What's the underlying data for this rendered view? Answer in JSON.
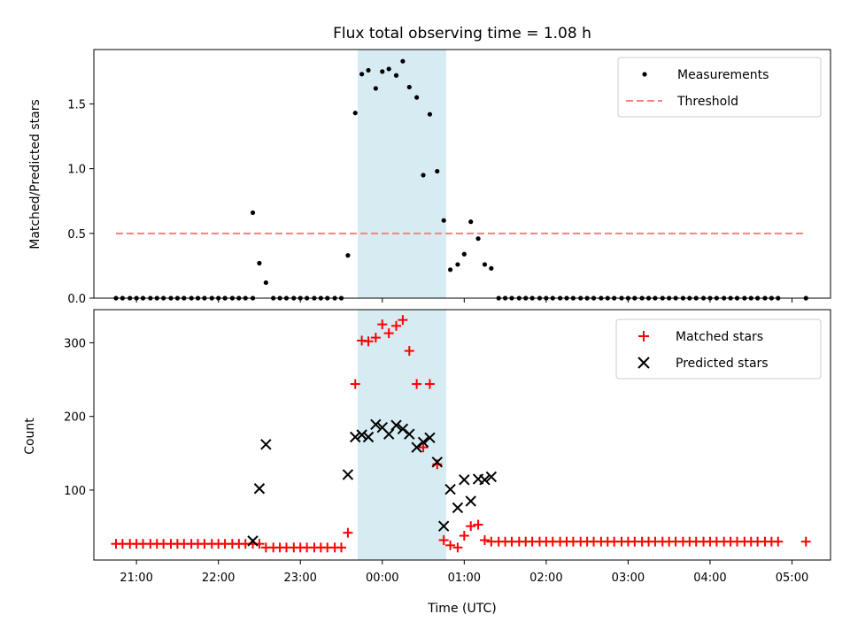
{
  "chart_data": [
    {
      "type": "scatter",
      "title": "Flux total observing time = 1.08 h",
      "xlabel": "",
      "ylabel": "Matched/Predicted stars",
      "xlim": [
        -3.52,
        5.47
      ],
      "ylim": [
        0,
        1.92
      ],
      "yticks": [
        "0.0",
        "0.5",
        "1.0",
        "1.5"
      ],
      "yticks_values": [
        0,
        0.5,
        1.0,
        1.5
      ],
      "highlight_span": [
        -0.3,
        0.78
      ],
      "threshold": 0.5,
      "threshold_x": [
        -3.25,
        5.17
      ],
      "legend_position": "top-right",
      "series": [
        {
          "name": "Measurements",
          "color": "#000000",
          "marker": "dot",
          "points": [
            [
              -3.25,
              0
            ],
            [
              -3.17,
              0
            ],
            [
              -3.08,
              0
            ],
            [
              -3.0,
              0
            ],
            [
              -2.92,
              0
            ],
            [
              -2.83,
              0
            ],
            [
              -2.75,
              0
            ],
            [
              -2.67,
              0
            ],
            [
              -2.58,
              0
            ],
            [
              -2.5,
              0
            ],
            [
              -2.42,
              0
            ],
            [
              -2.33,
              0
            ],
            [
              -2.25,
              0
            ],
            [
              -2.17,
              0
            ],
            [
              -2.08,
              0
            ],
            [
              -2.0,
              0
            ],
            [
              -1.92,
              0
            ],
            [
              -1.83,
              0
            ],
            [
              -1.75,
              0
            ],
            [
              -1.67,
              0
            ],
            [
              -1.58,
              0
            ],
            [
              -1.58,
              0.66
            ],
            [
              -1.5,
              0.27
            ],
            [
              -1.42,
              0.12
            ],
            [
              -1.33,
              0
            ],
            [
              -1.25,
              0
            ],
            [
              -1.17,
              0
            ],
            [
              -1.08,
              0
            ],
            [
              -1.0,
              0
            ],
            [
              -0.92,
              0
            ],
            [
              -0.83,
              0
            ],
            [
              -0.75,
              0
            ],
            [
              -0.67,
              0
            ],
            [
              -0.58,
              0
            ],
            [
              -0.5,
              0
            ],
            [
              -0.42,
              0.33
            ],
            [
              -0.33,
              1.43
            ],
            [
              -0.25,
              1.73
            ],
            [
              -0.17,
              1.76
            ],
            [
              -0.08,
              1.62
            ],
            [
              0.0,
              1.75
            ],
            [
              0.08,
              1.77
            ],
            [
              0.17,
              1.72
            ],
            [
              0.25,
              1.83
            ],
            [
              0.33,
              1.63
            ],
            [
              0.42,
              1.55
            ],
            [
              0.5,
              0.95
            ],
            [
              0.58,
              1.42
            ],
            [
              0.67,
              0.98
            ],
            [
              0.75,
              0.6
            ],
            [
              0.83,
              0.22
            ],
            [
              0.92,
              0.26
            ],
            [
              1.0,
              0.34
            ],
            [
              1.08,
              0.59
            ],
            [
              1.17,
              0.46
            ],
            [
              1.25,
              0.26
            ],
            [
              1.33,
              0.23
            ],
            [
              1.42,
              0
            ],
            [
              1.5,
              0
            ],
            [
              1.58,
              0
            ],
            [
              1.67,
              0
            ],
            [
              1.75,
              0
            ],
            [
              1.83,
              0
            ],
            [
              1.92,
              0
            ],
            [
              2.0,
              0
            ],
            [
              2.08,
              0
            ],
            [
              2.17,
              0
            ],
            [
              2.25,
              0
            ],
            [
              2.33,
              0
            ],
            [
              2.42,
              0
            ],
            [
              2.5,
              0
            ],
            [
              2.58,
              0
            ],
            [
              2.67,
              0
            ],
            [
              2.75,
              0
            ],
            [
              2.83,
              0
            ],
            [
              2.92,
              0
            ],
            [
              3.0,
              0
            ],
            [
              3.08,
              0
            ],
            [
              3.17,
              0
            ],
            [
              3.25,
              0
            ],
            [
              3.33,
              0
            ],
            [
              3.42,
              0
            ],
            [
              3.5,
              0
            ],
            [
              3.58,
              0
            ],
            [
              3.67,
              0
            ],
            [
              3.75,
              0
            ],
            [
              3.83,
              0
            ],
            [
              3.92,
              0
            ],
            [
              4.0,
              0
            ],
            [
              4.08,
              0
            ],
            [
              4.17,
              0
            ],
            [
              4.25,
              0
            ],
            [
              4.33,
              0
            ],
            [
              4.42,
              0
            ],
            [
              4.5,
              0
            ],
            [
              4.58,
              0
            ],
            [
              4.67,
              0
            ],
            [
              4.75,
              0
            ],
            [
              4.83,
              0
            ],
            [
              5.17,
              0
            ]
          ]
        },
        {
          "name": "Threshold",
          "color": "#ff7f7f",
          "marker": "dashed-line",
          "points": [
            [
              -3.25,
              0.5
            ],
            [
              5.17,
              0.5
            ]
          ]
        }
      ]
    },
    {
      "type": "scatter",
      "title": "",
      "xlabel": "Time (UTC)",
      "ylabel": "Count",
      "xlim": [
        -3.52,
        5.47
      ],
      "ylim": [
        5,
        345
      ],
      "yticks": [
        "100",
        "200",
        "300"
      ],
      "yticks_values": [
        100,
        200,
        300
      ],
      "xticks": [
        "21:00",
        "22:00",
        "23:00",
        "00:00",
        "01:00",
        "02:00",
        "03:00",
        "04:00",
        "05:00"
      ],
      "xticks_values": [
        -3,
        -2,
        -1,
        0,
        1,
        2,
        3,
        4,
        5
      ],
      "highlight_span": [
        -0.3,
        0.78
      ],
      "legend_position": "top-right",
      "series": [
        {
          "name": "Matched stars",
          "color": "#ff0000",
          "marker": "plus",
          "points": [
            [
              -3.25,
              27
            ],
            [
              -3.17,
              27
            ],
            [
              -3.08,
              27
            ],
            [
              -3.0,
              27
            ],
            [
              -2.92,
              27
            ],
            [
              -2.83,
              27
            ],
            [
              -2.75,
              27
            ],
            [
              -2.67,
              27
            ],
            [
              -2.58,
              27
            ],
            [
              -2.5,
              27
            ],
            [
              -2.42,
              27
            ],
            [
              -2.33,
              27
            ],
            [
              -2.25,
              27
            ],
            [
              -2.17,
              27
            ],
            [
              -2.08,
              27
            ],
            [
              -2.0,
              27
            ],
            [
              -1.92,
              27
            ],
            [
              -1.83,
              27
            ],
            [
              -1.75,
              27
            ],
            [
              -1.67,
              27
            ],
            [
              -1.58,
              27
            ],
            [
              -1.5,
              27
            ],
            [
              -1.42,
              22
            ],
            [
              -1.33,
              22
            ],
            [
              -1.25,
              22
            ],
            [
              -1.17,
              22
            ],
            [
              -1.08,
              22
            ],
            [
              -1.0,
              22
            ],
            [
              -0.92,
              22
            ],
            [
              -0.83,
              22
            ],
            [
              -0.75,
              22
            ],
            [
              -0.67,
              22
            ],
            [
              -0.58,
              22
            ],
            [
              -0.5,
              22
            ],
            [
              -0.42,
              42
            ],
            [
              -0.33,
              244
            ],
            [
              -0.25,
              303
            ],
            [
              -0.17,
              302
            ],
            [
              -0.08,
              307
            ],
            [
              0.0,
              325
            ],
            [
              0.08,
              313
            ],
            [
              0.17,
              323
            ],
            [
              0.25,
              331
            ],
            [
              0.33,
              289
            ],
            [
              0.42,
              244
            ],
            [
              0.5,
              158
            ],
            [
              0.58,
              244
            ],
            [
              0.67,
              135
            ],
            [
              0.75,
              32
            ],
            [
              0.83,
              25
            ],
            [
              0.92,
              22
            ],
            [
              1.0,
              38
            ],
            [
              1.08,
              51
            ],
            [
              1.17,
              53
            ],
            [
              1.25,
              32
            ],
            [
              1.33,
              30
            ],
            [
              1.42,
              30
            ],
            [
              1.5,
              30
            ],
            [
              1.58,
              30
            ],
            [
              1.67,
              30
            ],
            [
              1.75,
              30
            ],
            [
              1.83,
              30
            ],
            [
              1.92,
              30
            ],
            [
              2.0,
              30
            ],
            [
              2.08,
              30
            ],
            [
              2.17,
              30
            ],
            [
              2.25,
              30
            ],
            [
              2.33,
              30
            ],
            [
              2.42,
              30
            ],
            [
              2.5,
              30
            ],
            [
              2.58,
              30
            ],
            [
              2.67,
              30
            ],
            [
              2.75,
              30
            ],
            [
              2.83,
              30
            ],
            [
              2.92,
              30
            ],
            [
              3.0,
              30
            ],
            [
              3.08,
              30
            ],
            [
              3.17,
              30
            ],
            [
              3.25,
              30
            ],
            [
              3.33,
              30
            ],
            [
              3.42,
              30
            ],
            [
              3.5,
              30
            ],
            [
              3.58,
              30
            ],
            [
              3.67,
              30
            ],
            [
              3.75,
              30
            ],
            [
              3.83,
              30
            ],
            [
              3.92,
              30
            ],
            [
              4.0,
              30
            ],
            [
              4.08,
              30
            ],
            [
              4.17,
              30
            ],
            [
              4.25,
              30
            ],
            [
              4.33,
              30
            ],
            [
              4.42,
              30
            ],
            [
              4.5,
              30
            ],
            [
              4.58,
              30
            ],
            [
              4.67,
              30
            ],
            [
              4.75,
              30
            ],
            [
              4.83,
              30
            ],
            [
              5.17,
              30
            ]
          ]
        },
        {
          "name": "Predicted stars",
          "color": "#000000",
          "marker": "cross",
          "points": [
            [
              -1.58,
              31
            ],
            [
              -1.5,
              102
            ],
            [
              -1.42,
              162
            ],
            [
              -0.42,
              121
            ],
            [
              -0.33,
              172
            ],
            [
              -0.25,
              175
            ],
            [
              -0.17,
              172
            ],
            [
              -0.08,
              189
            ],
            [
              0.0,
              185
            ],
            [
              0.08,
              176
            ],
            [
              0.17,
              188
            ],
            [
              0.25,
              183
            ],
            [
              0.33,
              176
            ],
            [
              0.42,
              158
            ],
            [
              0.5,
              165
            ],
            [
              0.58,
              171
            ],
            [
              0.67,
              138
            ],
            [
              0.75,
              51
            ],
            [
              0.83,
              101
            ],
            [
              0.92,
              76
            ],
            [
              1.0,
              114
            ],
            [
              1.08,
              85
            ],
            [
              1.17,
              115
            ],
            [
              1.25,
              114
            ],
            [
              1.33,
              118
            ]
          ]
        }
      ]
    }
  ]
}
